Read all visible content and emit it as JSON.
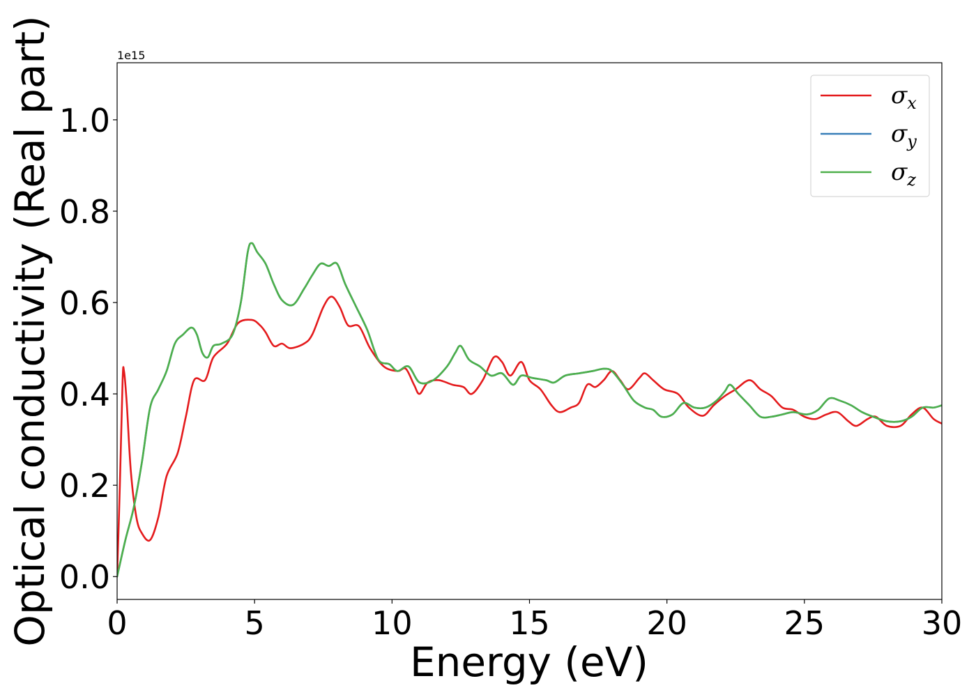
{
  "chart_data": {
    "type": "line",
    "xlabel": "Energy (eV)",
    "ylabel": "Optical conductivity (Real part)",
    "y_offset_label": "1e15",
    "xlim": [
      0,
      30
    ],
    "ylim": [
      -0.05,
      1.125
    ],
    "x_ticks": [
      0,
      5,
      10,
      15,
      20,
      25,
      30
    ],
    "x_tick_labels": [
      "0",
      "5",
      "10",
      "15",
      "20",
      "25",
      "30"
    ],
    "y_ticks": [
      0.0,
      0.2,
      0.4,
      0.6,
      0.8,
      1.0
    ],
    "y_tick_labels": [
      "0.0",
      "0.2",
      "0.4",
      "0.6",
      "0.8",
      "1.0"
    ],
    "grid": false,
    "legend_position": "top-right",
    "series": [
      {
        "symbol": "σ",
        "subscript": "x",
        "color": "#e41a1c",
        "points": [
          [
            0.0,
            0.0
          ],
          [
            0.1,
            0.2
          ],
          [
            0.2,
            0.43
          ],
          [
            0.25,
            0.45
          ],
          [
            0.35,
            0.38
          ],
          [
            0.5,
            0.23
          ],
          [
            0.7,
            0.13
          ],
          [
            0.9,
            0.095
          ],
          [
            1.2,
            0.08
          ],
          [
            1.5,
            0.13
          ],
          [
            1.8,
            0.22
          ],
          [
            2.2,
            0.27
          ],
          [
            2.5,
            0.35
          ],
          [
            2.8,
            0.43
          ],
          [
            3.2,
            0.43
          ],
          [
            3.5,
            0.48
          ],
          [
            4.0,
            0.51
          ],
          [
            4.4,
            0.555
          ],
          [
            4.9,
            0.562
          ],
          [
            5.2,
            0.55
          ],
          [
            5.4,
            0.535
          ],
          [
            5.7,
            0.505
          ],
          [
            6.0,
            0.51
          ],
          [
            6.3,
            0.5
          ],
          [
            6.8,
            0.51
          ],
          [
            7.1,
            0.53
          ],
          [
            7.5,
            0.59
          ],
          [
            7.8,
            0.613
          ],
          [
            8.1,
            0.59
          ],
          [
            8.4,
            0.55
          ],
          [
            8.8,
            0.548
          ],
          [
            9.2,
            0.5
          ],
          [
            9.7,
            0.46
          ],
          [
            10.2,
            0.45
          ],
          [
            10.5,
            0.455
          ],
          [
            10.8,
            0.42
          ],
          [
            11.0,
            0.4
          ],
          [
            11.3,
            0.425
          ],
          [
            11.7,
            0.43
          ],
          [
            12.2,
            0.42
          ],
          [
            12.6,
            0.415
          ],
          [
            12.9,
            0.4
          ],
          [
            13.3,
            0.43
          ],
          [
            13.7,
            0.48
          ],
          [
            14.0,
            0.47
          ],
          [
            14.3,
            0.44
          ],
          [
            14.7,
            0.47
          ],
          [
            15.0,
            0.43
          ],
          [
            15.4,
            0.41
          ],
          [
            15.8,
            0.375
          ],
          [
            16.1,
            0.36
          ],
          [
            16.5,
            0.37
          ],
          [
            16.8,
            0.38
          ],
          [
            17.1,
            0.42
          ],
          [
            17.4,
            0.415
          ],
          [
            17.7,
            0.43
          ],
          [
            18.0,
            0.45
          ],
          [
            18.3,
            0.43
          ],
          [
            18.6,
            0.41
          ],
          [
            19.0,
            0.435
          ],
          [
            19.2,
            0.445
          ],
          [
            19.5,
            0.43
          ],
          [
            19.9,
            0.41
          ],
          [
            20.4,
            0.4
          ],
          [
            20.8,
            0.37
          ],
          [
            21.3,
            0.352
          ],
          [
            21.7,
            0.375
          ],
          [
            22.1,
            0.395
          ],
          [
            22.5,
            0.41
          ],
          [
            23.0,
            0.43
          ],
          [
            23.4,
            0.41
          ],
          [
            23.8,
            0.395
          ],
          [
            24.2,
            0.37
          ],
          [
            24.6,
            0.365
          ],
          [
            25.0,
            0.35
          ],
          [
            25.4,
            0.345
          ],
          [
            25.8,
            0.355
          ],
          [
            26.2,
            0.36
          ],
          [
            26.6,
            0.34
          ],
          [
            26.9,
            0.33
          ],
          [
            27.3,
            0.345
          ],
          [
            27.6,
            0.35
          ],
          [
            28.0,
            0.33
          ],
          [
            28.5,
            0.33
          ],
          [
            28.9,
            0.355
          ],
          [
            29.3,
            0.37
          ],
          [
            29.7,
            0.345
          ],
          [
            30.0,
            0.335
          ]
        ]
      },
      {
        "symbol": "σ",
        "subscript": "y",
        "color": "#377eb8",
        "points": [
          [
            0.0,
            0.0
          ],
          [
            0.3,
            0.08
          ],
          [
            0.6,
            0.15
          ],
          [
            0.9,
            0.25
          ],
          [
            1.2,
            0.37
          ],
          [
            1.5,
            0.41
          ],
          [
            1.8,
            0.45
          ],
          [
            2.1,
            0.51
          ],
          [
            2.4,
            0.53
          ],
          [
            2.7,
            0.545
          ],
          [
            2.9,
            0.53
          ],
          [
            3.1,
            0.49
          ],
          [
            3.3,
            0.48
          ],
          [
            3.5,
            0.505
          ],
          [
            3.8,
            0.51
          ],
          [
            4.2,
            0.53
          ],
          [
            4.5,
            0.6
          ],
          [
            4.75,
            0.71
          ],
          [
            4.9,
            0.73
          ],
          [
            5.1,
            0.71
          ],
          [
            5.4,
            0.685
          ],
          [
            5.7,
            0.64
          ],
          [
            6.0,
            0.605
          ],
          [
            6.4,
            0.595
          ],
          [
            6.8,
            0.63
          ],
          [
            7.1,
            0.66
          ],
          [
            7.4,
            0.685
          ],
          [
            7.7,
            0.68
          ],
          [
            8.0,
            0.685
          ],
          [
            8.3,
            0.64
          ],
          [
            8.7,
            0.59
          ],
          [
            9.1,
            0.54
          ],
          [
            9.5,
            0.475
          ],
          [
            9.9,
            0.465
          ],
          [
            10.2,
            0.45
          ],
          [
            10.6,
            0.46
          ],
          [
            11.0,
            0.425
          ],
          [
            11.5,
            0.43
          ],
          [
            12.0,
            0.46
          ],
          [
            12.3,
            0.49
          ],
          [
            12.5,
            0.505
          ],
          [
            12.8,
            0.475
          ],
          [
            13.2,
            0.46
          ],
          [
            13.6,
            0.44
          ],
          [
            14.0,
            0.445
          ],
          [
            14.4,
            0.42
          ],
          [
            14.7,
            0.44
          ],
          [
            15.1,
            0.435
          ],
          [
            15.6,
            0.43
          ],
          [
            15.9,
            0.425
          ],
          [
            16.3,
            0.44
          ],
          [
            16.8,
            0.445
          ],
          [
            17.3,
            0.45
          ],
          [
            17.7,
            0.455
          ],
          [
            18.0,
            0.45
          ],
          [
            18.4,
            0.42
          ],
          [
            18.8,
            0.385
          ],
          [
            19.2,
            0.37
          ],
          [
            19.5,
            0.365
          ],
          [
            19.8,
            0.35
          ],
          [
            20.2,
            0.355
          ],
          [
            20.6,
            0.38
          ],
          [
            21.0,
            0.37
          ],
          [
            21.4,
            0.37
          ],
          [
            21.8,
            0.385
          ],
          [
            22.1,
            0.405
          ],
          [
            22.3,
            0.42
          ],
          [
            22.6,
            0.4
          ],
          [
            23.0,
            0.375
          ],
          [
            23.4,
            0.35
          ],
          [
            23.8,
            0.35
          ],
          [
            24.2,
            0.355
          ],
          [
            24.6,
            0.36
          ],
          [
            25.1,
            0.355
          ],
          [
            25.5,
            0.365
          ],
          [
            25.9,
            0.39
          ],
          [
            26.3,
            0.385
          ],
          [
            26.7,
            0.375
          ],
          [
            27.1,
            0.36
          ],
          [
            27.5,
            0.35
          ],
          [
            28.0,
            0.34
          ],
          [
            28.5,
            0.34
          ],
          [
            28.9,
            0.35
          ],
          [
            29.3,
            0.37
          ],
          [
            29.7,
            0.37
          ],
          [
            30.0,
            0.375
          ]
        ]
      },
      {
        "symbol": "σ",
        "subscript": "z",
        "color": "#4daf4a",
        "points": [
          [
            0.0,
            0.0
          ],
          [
            0.3,
            0.08
          ],
          [
            0.6,
            0.15
          ],
          [
            0.9,
            0.25
          ],
          [
            1.2,
            0.37
          ],
          [
            1.5,
            0.41
          ],
          [
            1.8,
            0.45
          ],
          [
            2.1,
            0.51
          ],
          [
            2.4,
            0.53
          ],
          [
            2.7,
            0.545
          ],
          [
            2.9,
            0.53
          ],
          [
            3.1,
            0.49
          ],
          [
            3.3,
            0.48
          ],
          [
            3.5,
            0.505
          ],
          [
            3.8,
            0.51
          ],
          [
            4.2,
            0.53
          ],
          [
            4.5,
            0.6
          ],
          [
            4.75,
            0.71
          ],
          [
            4.9,
            0.73
          ],
          [
            5.1,
            0.71
          ],
          [
            5.4,
            0.685
          ],
          [
            5.7,
            0.64
          ],
          [
            6.0,
            0.605
          ],
          [
            6.4,
            0.595
          ],
          [
            6.8,
            0.63
          ],
          [
            7.1,
            0.66
          ],
          [
            7.4,
            0.685
          ],
          [
            7.7,
            0.68
          ],
          [
            8.0,
            0.685
          ],
          [
            8.3,
            0.64
          ],
          [
            8.7,
            0.59
          ],
          [
            9.1,
            0.54
          ],
          [
            9.5,
            0.475
          ],
          [
            9.9,
            0.465
          ],
          [
            10.2,
            0.45
          ],
          [
            10.6,
            0.46
          ],
          [
            11.0,
            0.425
          ],
          [
            11.5,
            0.43
          ],
          [
            12.0,
            0.46
          ],
          [
            12.3,
            0.49
          ],
          [
            12.5,
            0.505
          ],
          [
            12.8,
            0.475
          ],
          [
            13.2,
            0.46
          ],
          [
            13.6,
            0.44
          ],
          [
            14.0,
            0.445
          ],
          [
            14.4,
            0.42
          ],
          [
            14.7,
            0.44
          ],
          [
            15.1,
            0.435
          ],
          [
            15.6,
            0.43
          ],
          [
            15.9,
            0.425
          ],
          [
            16.3,
            0.44
          ],
          [
            16.8,
            0.445
          ],
          [
            17.3,
            0.45
          ],
          [
            17.7,
            0.455
          ],
          [
            18.0,
            0.45
          ],
          [
            18.4,
            0.42
          ],
          [
            18.8,
            0.385
          ],
          [
            19.2,
            0.37
          ],
          [
            19.5,
            0.365
          ],
          [
            19.8,
            0.35
          ],
          [
            20.2,
            0.355
          ],
          [
            20.6,
            0.38
          ],
          [
            21.0,
            0.37
          ],
          [
            21.4,
            0.37
          ],
          [
            21.8,
            0.385
          ],
          [
            22.1,
            0.405
          ],
          [
            22.3,
            0.42
          ],
          [
            22.6,
            0.4
          ],
          [
            23.0,
            0.375
          ],
          [
            23.4,
            0.35
          ],
          [
            23.8,
            0.35
          ],
          [
            24.2,
            0.355
          ],
          [
            24.6,
            0.36
          ],
          [
            25.1,
            0.355
          ],
          [
            25.5,
            0.365
          ],
          [
            25.9,
            0.39
          ],
          [
            26.3,
            0.385
          ],
          [
            26.7,
            0.375
          ],
          [
            27.1,
            0.36
          ],
          [
            27.5,
            0.35
          ],
          [
            28.0,
            0.34
          ],
          [
            28.5,
            0.34
          ],
          [
            28.9,
            0.35
          ],
          [
            29.3,
            0.37
          ],
          [
            29.7,
            0.37
          ],
          [
            30.0,
            0.375
          ]
        ]
      }
    ]
  }
}
